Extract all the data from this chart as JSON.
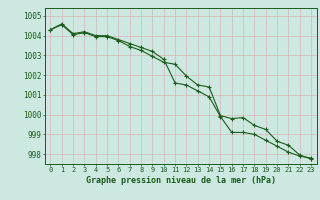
{
  "xlabel": "Graphe pression niveau de la mer (hPa)",
  "bg_color": "#cce8e0",
  "grid_color": "#b0d4cc",
  "line_color": "#1a5c1a",
  "hours": [
    0,
    1,
    2,
    3,
    4,
    5,
    6,
    7,
    8,
    9,
    10,
    11,
    12,
    13,
    14,
    15,
    16,
    17,
    18,
    19,
    20,
    21,
    22,
    23
  ],
  "line1": [
    1004.3,
    1004.6,
    1004.1,
    1004.2,
    1004.0,
    1004.0,
    1003.8,
    1003.6,
    1003.4,
    1003.2,
    1002.8,
    1001.6,
    1001.5,
    1001.2,
    1000.9,
    999.9,
    999.1,
    999.1,
    999.0,
    998.7,
    998.4,
    998.1,
    997.9,
    997.8
  ],
  "line2": [
    1004.3,
    1004.55,
    1004.05,
    1004.15,
    1003.95,
    1003.95,
    1003.75,
    1003.45,
    1003.25,
    1002.95,
    1002.65,
    1002.55,
    1001.95,
    1001.5,
    1001.4,
    999.95,
    999.8,
    999.85,
    999.45,
    999.25,
    998.65,
    998.45,
    997.95,
    997.75
  ],
  "ylim_min": 997.5,
  "ylim_max": 1005.4,
  "yticks": [
    998,
    999,
    1000,
    1001,
    1002,
    1003,
    1004,
    1005
  ]
}
